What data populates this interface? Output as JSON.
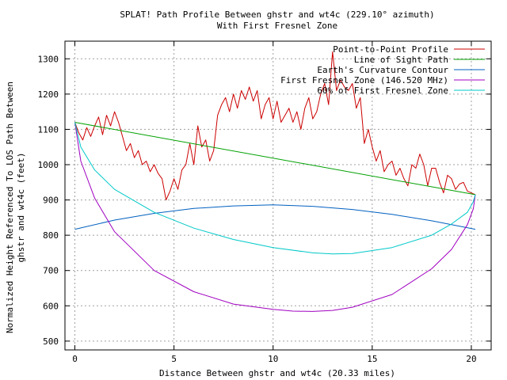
{
  "chart_data": {
    "type": "line",
    "title": "SPLAT! Path Profile Between ghstr and wt4c (229.10° azimuth)",
    "subtitle": "With First Fresnel Zone",
    "xlabel": "Distance Between ghstr and wt4c (20.33 miles)",
    "ylabel_line1": "Normalized Height Referenced To LOS Path Between",
    "ylabel_line2": "ghstr and wt4c (feet)",
    "xlim": [
      -0.5,
      21
    ],
    "ylim": [
      475,
      1350
    ],
    "x_ticks": [
      0,
      5,
      10,
      15,
      20
    ],
    "y_ticks": [
      500,
      600,
      700,
      800,
      900,
      1000,
      1100,
      1200,
      1300
    ],
    "grid": true,
    "legend_position": "top-right",
    "series": [
      {
        "name": "Point-to-Point Profile",
        "color": "#cc0000",
        "x": [
          0,
          0.2,
          0.4,
          0.6,
          0.8,
          1.0,
          1.2,
          1.4,
          1.6,
          1.8,
          2.0,
          2.2,
          2.4,
          2.6,
          2.8,
          3.0,
          3.2,
          3.4,
          3.6,
          3.8,
          4.0,
          4.2,
          4.4,
          4.6,
          4.8,
          5.0,
          5.2,
          5.4,
          5.6,
          5.8,
          6.0,
          6.2,
          6.4,
          6.6,
          6.8,
          7.0,
          7.2,
          7.4,
          7.6,
          7.8,
          8.0,
          8.2,
          8.4,
          8.6,
          8.8,
          9.0,
          9.2,
          9.4,
          9.6,
          9.8,
          10.0,
          10.2,
          10.4,
          10.6,
          10.8,
          11.0,
          11.2,
          11.4,
          11.6,
          11.8,
          12.0,
          12.2,
          12.4,
          12.6,
          12.8,
          13.0,
          13.2,
          13.4,
          13.6,
          13.8,
          14.0,
          14.2,
          14.4,
          14.6,
          14.8,
          15.0,
          15.2,
          15.4,
          15.6,
          15.8,
          16.0,
          16.2,
          16.4,
          16.6,
          16.8,
          17.0,
          17.2,
          17.4,
          17.6,
          17.8,
          18.0,
          18.2,
          18.4,
          18.6,
          18.8,
          19.0,
          19.2,
          19.4,
          19.6,
          19.8,
          20.0,
          20.2
        ],
        "y": [
          1120,
          1090,
          1070,
          1105,
          1080,
          1110,
          1135,
          1085,
          1140,
          1110,
          1150,
          1120,
          1080,
          1040,
          1060,
          1020,
          1040,
          1000,
          1010,
          980,
          1000,
          975,
          960,
          900,
          925,
          960,
          930,
          985,
          1000,
          1060,
          1000,
          1110,
          1050,
          1070,
          1010,
          1040,
          1140,
          1170,
          1190,
          1150,
          1200,
          1160,
          1210,
          1185,
          1220,
          1180,
          1210,
          1130,
          1170,
          1190,
          1130,
          1180,
          1120,
          1140,
          1160,
          1120,
          1150,
          1100,
          1160,
          1190,
          1130,
          1150,
          1200,
          1230,
          1170,
          1320,
          1210,
          1240,
          1220,
          1210,
          1230,
          1160,
          1190,
          1060,
          1100,
          1050,
          1010,
          1040,
          980,
          1000,
          1010,
          970,
          990,
          960,
          940,
          1000,
          990,
          1030,
          1000,
          940,
          990,
          990,
          950,
          920,
          970,
          960,
          930,
          945,
          950,
          925,
          920,
          915
        ]
      },
      {
        "name": "Line of Sight Path",
        "color": "#00a000",
        "x": [
          0,
          20.2
        ],
        "y": [
          1120,
          915
        ]
      },
      {
        "name": "Earth's Curvature Contour",
        "color": "#0060c0",
        "x": [
          0,
          2,
          4,
          6,
          8,
          10,
          12,
          14,
          16,
          18,
          20.2
        ],
        "y": [
          817,
          843,
          862,
          876,
          883,
          886,
          882,
          873,
          859,
          841,
          817
        ]
      },
      {
        "name": "First Fresnel Zone (146.520 MHz)",
        "color": "#a000c0",
        "x": [
          0,
          0.3,
          1,
          2,
          4,
          6,
          8,
          10,
          11,
          12,
          13,
          14,
          16,
          18,
          19,
          19.8,
          20.1,
          20.2
        ],
        "y": [
          1120,
          1010,
          905,
          810,
          700,
          640,
          605,
          590,
          585,
          584,
          587,
          596,
          632,
          705,
          760,
          830,
          875,
          915
        ]
      },
      {
        "name": "60% of First Fresnel Zone",
        "color": "#00c8c8",
        "x": [
          0,
          0.3,
          1,
          2,
          4,
          6,
          8,
          10,
          12,
          13,
          14,
          16,
          18,
          19,
          19.8,
          20.1,
          20.2
        ],
        "y": [
          1120,
          1050,
          985,
          930,
          865,
          820,
          788,
          765,
          750,
          747,
          748,
          765,
          800,
          832,
          865,
          895,
          915
        ]
      }
    ]
  }
}
